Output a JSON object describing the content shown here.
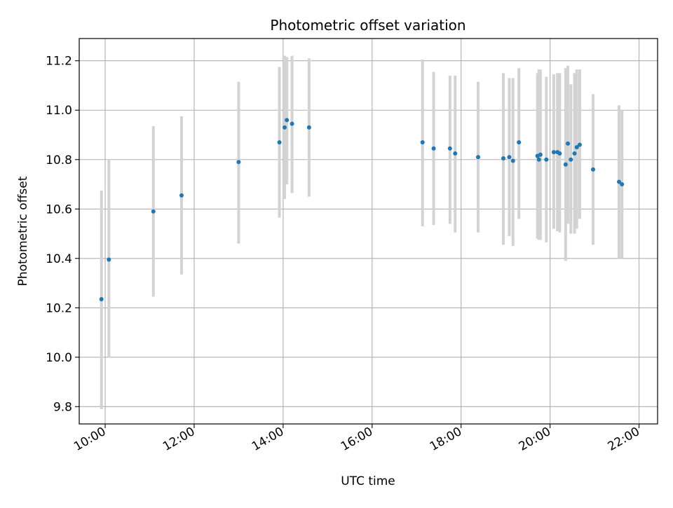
{
  "chart_data": {
    "type": "scatter",
    "title": "Photometric offset variation",
    "xlabel": "UTC time",
    "ylabel": "Photometric offset",
    "x_format": "HH:MM",
    "xlim": [
      "09:25",
      "22:25"
    ],
    "ylim": [
      9.73,
      11.29
    ],
    "xticks": [
      "10:00",
      "12:00",
      "14:00",
      "16:00",
      "18:00",
      "20:00",
      "22:00"
    ],
    "yticks": [
      9.8,
      10.0,
      10.2,
      10.4,
      10.6,
      10.8,
      11.0,
      11.2
    ],
    "grid": true,
    "legend": false,
    "colors": {
      "point": "#1f77b4",
      "errorbar": "#d3d3d3",
      "grid": "#b0b0b0"
    },
    "points": [
      {
        "x": "09:55",
        "y": 10.235,
        "ylow": 9.79,
        "yhigh": 10.675
      },
      {
        "x": "10:05",
        "y": 10.395,
        "ylow": 10.0,
        "yhigh": 10.8
      },
      {
        "x": "11:05",
        "y": 10.59,
        "ylow": 10.245,
        "yhigh": 10.935
      },
      {
        "x": "11:43",
        "y": 10.655,
        "ylow": 10.335,
        "yhigh": 10.975
      },
      {
        "x": "13:00",
        "y": 10.79,
        "ylow": 10.46,
        "yhigh": 11.115
      },
      {
        "x": "13:55",
        "y": 10.87,
        "ylow": 10.565,
        "yhigh": 11.175
      },
      {
        "x": "14:02",
        "y": 10.93,
        "ylow": 10.64,
        "yhigh": 11.22
      },
      {
        "x": "14:05",
        "y": 10.96,
        "ylow": 10.7,
        "yhigh": 11.215
      },
      {
        "x": "14:12",
        "y": 10.945,
        "ylow": 10.665,
        "yhigh": 11.22
      },
      {
        "x": "14:35",
        "y": 10.93,
        "ylow": 10.65,
        "yhigh": 11.21
      },
      {
        "x": "17:08",
        "y": 10.87,
        "ylow": 10.53,
        "yhigh": 11.205
      },
      {
        "x": "17:23",
        "y": 10.845,
        "ylow": 10.535,
        "yhigh": 11.155
      },
      {
        "x": "17:45",
        "y": 10.845,
        "ylow": 10.54,
        "yhigh": 11.14
      },
      {
        "x": "17:52",
        "y": 10.825,
        "ylow": 10.505,
        "yhigh": 11.14
      },
      {
        "x": "18:23",
        "y": 10.81,
        "ylow": 10.505,
        "yhigh": 11.115
      },
      {
        "x": "18:57",
        "y": 10.805,
        "ylow": 10.455,
        "yhigh": 11.15
      },
      {
        "x": "19:05",
        "y": 10.81,
        "ylow": 10.49,
        "yhigh": 11.13
      },
      {
        "x": "19:10",
        "y": 10.795,
        "ylow": 10.45,
        "yhigh": 11.13
      },
      {
        "x": "19:18",
        "y": 10.87,
        "ylow": 10.56,
        "yhigh": 11.17
      },
      {
        "x": "19:43",
        "y": 10.815,
        "ylow": 10.48,
        "yhigh": 11.15
      },
      {
        "x": "19:45",
        "y": 10.8,
        "ylow": 10.475,
        "yhigh": 11.165
      },
      {
        "x": "19:47",
        "y": 10.82,
        "ylow": 10.475,
        "yhigh": 11.165
      },
      {
        "x": "19:55",
        "y": 10.8,
        "ylow": 10.465,
        "yhigh": 11.135
      },
      {
        "x": "20:05",
        "y": 10.83,
        "ylow": 10.52,
        "yhigh": 11.145
      },
      {
        "x": "20:10",
        "y": 10.83,
        "ylow": 10.51,
        "yhigh": 11.15
      },
      {
        "x": "20:13",
        "y": 10.825,
        "ylow": 10.505,
        "yhigh": 11.15
      },
      {
        "x": "20:21",
        "y": 10.78,
        "ylow": 10.39,
        "yhigh": 11.17
      },
      {
        "x": "20:24",
        "y": 10.865,
        "ylow": 10.54,
        "yhigh": 11.18
      },
      {
        "x": "20:28",
        "y": 10.8,
        "ylow": 10.5,
        "yhigh": 11.105
      },
      {
        "x": "20:33",
        "y": 10.825,
        "ylow": 10.5,
        "yhigh": 11.15
      },
      {
        "x": "20:36",
        "y": 10.85,
        "ylow": 10.52,
        "yhigh": 11.165
      },
      {
        "x": "20:40",
        "y": 10.86,
        "ylow": 10.56,
        "yhigh": 11.165
      },
      {
        "x": "20:58",
        "y": 10.76,
        "ylow": 10.455,
        "yhigh": 11.065
      },
      {
        "x": "21:33",
        "y": 10.71,
        "ylow": 10.4,
        "yhigh": 11.02
      },
      {
        "x": "21:37",
        "y": 10.7,
        "ylow": 10.4,
        "yhigh": 11.0
      }
    ]
  }
}
